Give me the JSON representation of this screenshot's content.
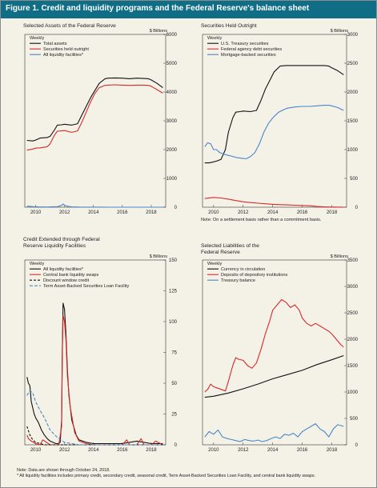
{
  "figure": {
    "title": "Figure 1. Credit and liquidity programs and the Federal Reserve's balance sheet",
    "notes": [
      "Note: Data are shown through October 24, 2018.",
      "* All liquidity facilities includes primary credit, secondary credit, seasonal credit, Term Asset-Backed Securities Loan Facility, and central bank liquidity swaps."
    ]
  },
  "colors": {
    "banner": "#0f6e86",
    "black": "#111111",
    "red": "#d62a2a",
    "blue": "#4a86c8",
    "background": "#f4f1e7"
  },
  "chart_data": [
    {
      "type": "line",
      "title": "Selected Assets of the Federal Reserve",
      "frequency": "Weekly",
      "unit": "$ Billions",
      "x_ticks": [
        "2010",
        "2012",
        "2014",
        "2016",
        "2018"
      ],
      "y_ticks": [
        "0",
        "1000",
        "2000",
        "3000",
        "4000",
        "5000",
        "6000"
      ],
      "xlim": [
        2009.25,
        2019.0
      ],
      "ylim": [
        0,
        6000
      ],
      "legend_position": "top-left",
      "series": [
        {
          "name": "Total assets",
          "color": "black",
          "x": [
            2009.4,
            2009.8,
            2010.0,
            2010.3,
            2010.8,
            2011.0,
            2011.3,
            2011.5,
            2011.8,
            2012.0,
            2012.5,
            2012.9,
            2013.2,
            2013.5,
            2013.8,
            2014.1,
            2014.4,
            2014.8,
            2015.0,
            2015.5,
            2016.0,
            2016.5,
            2017.0,
            2017.5,
            2017.8,
            2018.0,
            2018.4,
            2018.8
          ],
          "y": [
            2320,
            2300,
            2330,
            2400,
            2420,
            2460,
            2680,
            2850,
            2860,
            2880,
            2850,
            2900,
            3200,
            3500,
            3800,
            4050,
            4300,
            4460,
            4480,
            4490,
            4480,
            4460,
            4480,
            4470,
            4460,
            4420,
            4300,
            4150
          ]
        },
        {
          "name": "Securities held outright",
          "color": "red",
          "x": [
            2009.4,
            2009.8,
            2010.0,
            2010.3,
            2010.8,
            2011.0,
            2011.3,
            2011.5,
            2011.8,
            2012.0,
            2012.5,
            2012.9,
            2013.2,
            2013.5,
            2013.8,
            2014.1,
            2014.4,
            2014.8,
            2015.0,
            2015.5,
            2016.0,
            2016.5,
            2017.0,
            2017.5,
            2017.8,
            2018.0,
            2018.4,
            2018.8
          ],
          "y": [
            1980,
            2020,
            2050,
            2060,
            2100,
            2200,
            2500,
            2640,
            2650,
            2660,
            2600,
            2650,
            2950,
            3300,
            3650,
            3950,
            4150,
            4230,
            4240,
            4250,
            4240,
            4230,
            4240,
            4240,
            4230,
            4200,
            4080,
            3960
          ]
        },
        {
          "name": "All liquidity facilities*",
          "color": "blue",
          "x": [
            2009.4,
            2009.8,
            2010.2,
            2010.8,
            2011.0,
            2011.5,
            2011.8,
            2011.9,
            2012.0,
            2012.2,
            2012.5,
            2013.0,
            2014.0,
            2015.0,
            2016.0,
            2017.0,
            2018.0,
            2018.8
          ],
          "y": [
            40,
            20,
            10,
            5,
            10,
            20,
            60,
            110,
            70,
            30,
            15,
            5,
            2,
            1,
            1,
            1,
            1,
            1
          ]
        }
      ]
    },
    {
      "type": "line",
      "title": "Securities Held Outright",
      "frequency": "Weekly",
      "unit": "$ Billions",
      "note": "Note: On a settlement basis rather than a commitment basis.",
      "x_ticks": [
        "2010",
        "2012",
        "2014",
        "2016",
        "2018"
      ],
      "y_ticks": [
        "0",
        "500",
        "1000",
        "1500",
        "2000",
        "2500",
        "3000"
      ],
      "xlim": [
        2009.25,
        2019.0
      ],
      "ylim": [
        0,
        3000
      ],
      "legend_position": "top-left",
      "series": [
        {
          "name": "U.S. Treasury securities",
          "color": "black",
          "x": [
            2009.4,
            2009.7,
            2009.9,
            2010.2,
            2010.5,
            2010.8,
            2011.0,
            2011.3,
            2011.5,
            2011.8,
            2012.0,
            2012.5,
            2012.9,
            2013.2,
            2013.5,
            2013.8,
            2014.1,
            2014.5,
            2014.9,
            2015.5,
            2016.0,
            2016.5,
            2017.0,
            2017.5,
            2017.8,
            2018.0,
            2018.4,
            2018.8
          ],
          "y": [
            770,
            770,
            780,
            800,
            830,
            1000,
            1300,
            1550,
            1650,
            1660,
            1670,
            1660,
            1680,
            1850,
            2050,
            2200,
            2350,
            2450,
            2460,
            2460,
            2460,
            2460,
            2460,
            2460,
            2450,
            2420,
            2370,
            2300
          ]
        },
        {
          "name": "Federal agency debt securities",
          "color": "red",
          "x": [
            2009.4,
            2010.0,
            2010.5,
            2011.0,
            2011.5,
            2012.0,
            2012.5,
            2013.0,
            2013.5,
            2014.0,
            2014.5,
            2015.0,
            2015.5,
            2016.0,
            2016.5,
            2017.0,
            2017.5,
            2018.0,
            2018.5,
            2018.8
          ],
          "y": [
            150,
            170,
            160,
            140,
            115,
            95,
            80,
            70,
            60,
            50,
            45,
            40,
            35,
            30,
            25,
            12,
            5,
            3,
            2,
            2
          ]
        },
        {
          "name": "Mortgage-backed securities",
          "color": "blue",
          "x": [
            2009.4,
            2009.6,
            2009.8,
            2010.0,
            2010.2,
            2010.4,
            2010.7,
            2011.0,
            2011.3,
            2011.6,
            2011.9,
            2012.2,
            2012.5,
            2012.8,
            2013.1,
            2013.4,
            2013.7,
            2014.0,
            2014.4,
            2014.8,
            2015.0,
            2015.5,
            2016.0,
            2016.5,
            2017.0,
            2017.5,
            2017.8,
            2018.0,
            2018.4,
            2018.8
          ],
          "y": [
            1050,
            1120,
            1100,
            1000,
            1000,
            950,
            920,
            900,
            880,
            860,
            850,
            840,
            880,
            950,
            1100,
            1300,
            1450,
            1550,
            1650,
            1700,
            1720,
            1740,
            1750,
            1750,
            1760,
            1770,
            1770,
            1760,
            1730,
            1680
          ]
        }
      ]
    },
    {
      "type": "line",
      "title": "Credit Extended through Federal Reserve Liquidity Facilities",
      "frequency": "Weekly",
      "unit": "$ Billions",
      "x_ticks": [
        "2010",
        "2012",
        "2014",
        "2016",
        "2018"
      ],
      "y_ticks": [
        "0",
        "25",
        "50",
        "75",
        "100",
        "125",
        "150"
      ],
      "xlim": [
        2009.25,
        2019.0
      ],
      "ylim": [
        0,
        150
      ],
      "legend_position": "top-left",
      "series": [
        {
          "name": "All liquidity facilities*",
          "color": "black",
          "x": [
            2009.4,
            2009.5,
            2009.6,
            2009.7,
            2009.8,
            2009.9,
            2010.0,
            2010.2,
            2010.4,
            2010.6,
            2010.8,
            2011.0,
            2011.2,
            2011.4,
            2011.6,
            2011.7,
            2011.8,
            2011.85,
            2011.9,
            2012.0,
            2012.1,
            2012.2,
            2012.3,
            2012.5,
            2012.8,
            2013.0,
            2013.5,
            2014.0,
            2015.0,
            2016.0,
            2016.5,
            2017.0,
            2017.5,
            2018.0,
            2018.8
          ],
          "y": [
            55,
            50,
            48,
            35,
            30,
            25,
            22,
            18,
            12,
            8,
            5,
            3,
            2,
            1,
            1,
            2,
            20,
            80,
            115,
            110,
            90,
            60,
            40,
            20,
            8,
            4,
            2,
            1,
            1,
            1,
            2,
            3,
            2,
            1,
            1
          ]
        },
        {
          "name": "Central bank liquidity swaps",
          "color": "red",
          "x": [
            2009.4,
            2009.5,
            2009.7,
            2010.0,
            2010.3,
            2010.5,
            2011.0,
            2011.6,
            2011.8,
            2011.85,
            2011.9,
            2012.0,
            2012.1,
            2012.2,
            2012.4,
            2012.7,
            2013.0,
            2013.5,
            2014.0,
            2015.0,
            2016.0,
            2016.3,
            2016.5,
            2017.0,
            2017.3,
            2017.5,
            2018.0,
            2018.3,
            2018.8
          ],
          "y": [
            8,
            5,
            3,
            1,
            0,
            4,
            0,
            0,
            15,
            75,
            105,
            100,
            85,
            55,
            30,
            10,
            3,
            1,
            0,
            0,
            0,
            4,
            0,
            0,
            5,
            0,
            0,
            3,
            0
          ]
        },
        {
          "name": "Discount window credit",
          "color": "black",
          "dash": "3,2",
          "x": [
            2009.4,
            2009.6,
            2009.8,
            2010.0,
            2010.3,
            2010.6,
            2011.0,
            2011.5,
            2012.0,
            2013.0,
            2014.0,
            2015.0,
            2016.0,
            2017.0,
            2018.0,
            2018.8
          ],
          "y": [
            15,
            8,
            4,
            2,
            1,
            0,
            0,
            0,
            0,
            0,
            0,
            0,
            0,
            0,
            0,
            0
          ]
        },
        {
          "name": "Term Asset-Backed Securities Loan Facility",
          "color": "blue",
          "dash": "4,2",
          "x": [
            2009.4,
            2009.6,
            2009.8,
            2010.0,
            2010.3,
            2010.6,
            2011.0,
            2011.5,
            2012.0,
            2012.5,
            2013.0,
            2014.0,
            2015.0,
            2016.0,
            2017.0,
            2018.0,
            2018.8
          ],
          "y": [
            40,
            44,
            42,
            35,
            28,
            22,
            12,
            6,
            2,
            1,
            0,
            0,
            0,
            0,
            0,
            0,
            0
          ]
        }
      ]
    },
    {
      "type": "line",
      "title": "Selected Liabilities of the Federal Reserve",
      "frequency": "Weekly",
      "unit": "$ Billions",
      "x_ticks": [
        "2010",
        "2012",
        "2014",
        "2016",
        "2018"
      ],
      "y_ticks": [
        "0",
        "500",
        "1000",
        "1500",
        "2000",
        "2500",
        "3000",
        "3500"
      ],
      "xlim": [
        2009.25,
        2019.0
      ],
      "ylim": [
        0,
        3500
      ],
      "legend_position": "top-left",
      "series": [
        {
          "name": "Currency in circulation",
          "color": "black",
          "x": [
            2009.4,
            2010.0,
            2011.0,
            2012.0,
            2013.0,
            2014.0,
            2015.0,
            2016.0,
            2017.0,
            2018.0,
            2018.8
          ],
          "y": [
            900,
            920,
            980,
            1060,
            1150,
            1250,
            1330,
            1410,
            1520,
            1610,
            1690
          ]
        },
        {
          "name": "Deposits of depository institutions",
          "color": "red",
          "x": [
            2009.4,
            2009.6,
            2009.8,
            2010.0,
            2010.2,
            2010.5,
            2010.8,
            2011.0,
            2011.3,
            2011.5,
            2011.7,
            2012.0,
            2012.3,
            2012.6,
            2012.9,
            2013.2,
            2013.5,
            2013.8,
            2014.0,
            2014.3,
            2014.6,
            2014.9,
            2015.2,
            2015.5,
            2015.8,
            2016.0,
            2016.3,
            2016.6,
            2016.9,
            2017.2,
            2017.5,
            2017.8,
            2018.0,
            2018.3,
            2018.6,
            2018.8
          ],
          "y": [
            1000,
            1050,
            1150,
            1100,
            1080,
            1050,
            1020,
            1200,
            1500,
            1650,
            1620,
            1600,
            1500,
            1450,
            1550,
            1800,
            2100,
            2350,
            2550,
            2650,
            2750,
            2700,
            2600,
            2650,
            2550,
            2400,
            2300,
            2250,
            2300,
            2250,
            2200,
            2150,
            2100,
            2000,
            1900,
            1850
          ]
        },
        {
          "name": "Treasury balance",
          "color": "blue",
          "x": [
            2009.4,
            2009.7,
            2010.0,
            2010.3,
            2010.6,
            2010.9,
            2011.2,
            2011.5,
            2011.8,
            2012.1,
            2012.4,
            2012.7,
            2013.0,
            2013.3,
            2013.6,
            2013.9,
            2014.2,
            2014.5,
            2014.8,
            2015.1,
            2015.4,
            2015.7,
            2016.0,
            2016.3,
            2016.6,
            2016.9,
            2017.2,
            2017.5,
            2017.8,
            2018.1,
            2018.4,
            2018.8
          ],
          "y": [
            150,
            250,
            200,
            280,
            150,
            120,
            100,
            80,
            60,
            100,
            80,
            70,
            90,
            60,
            80,
            120,
            150,
            120,
            200,
            180,
            220,
            150,
            250,
            300,
            350,
            400,
            300,
            250,
            150,
            300,
            380,
            350
          ]
        }
      ]
    }
  ]
}
